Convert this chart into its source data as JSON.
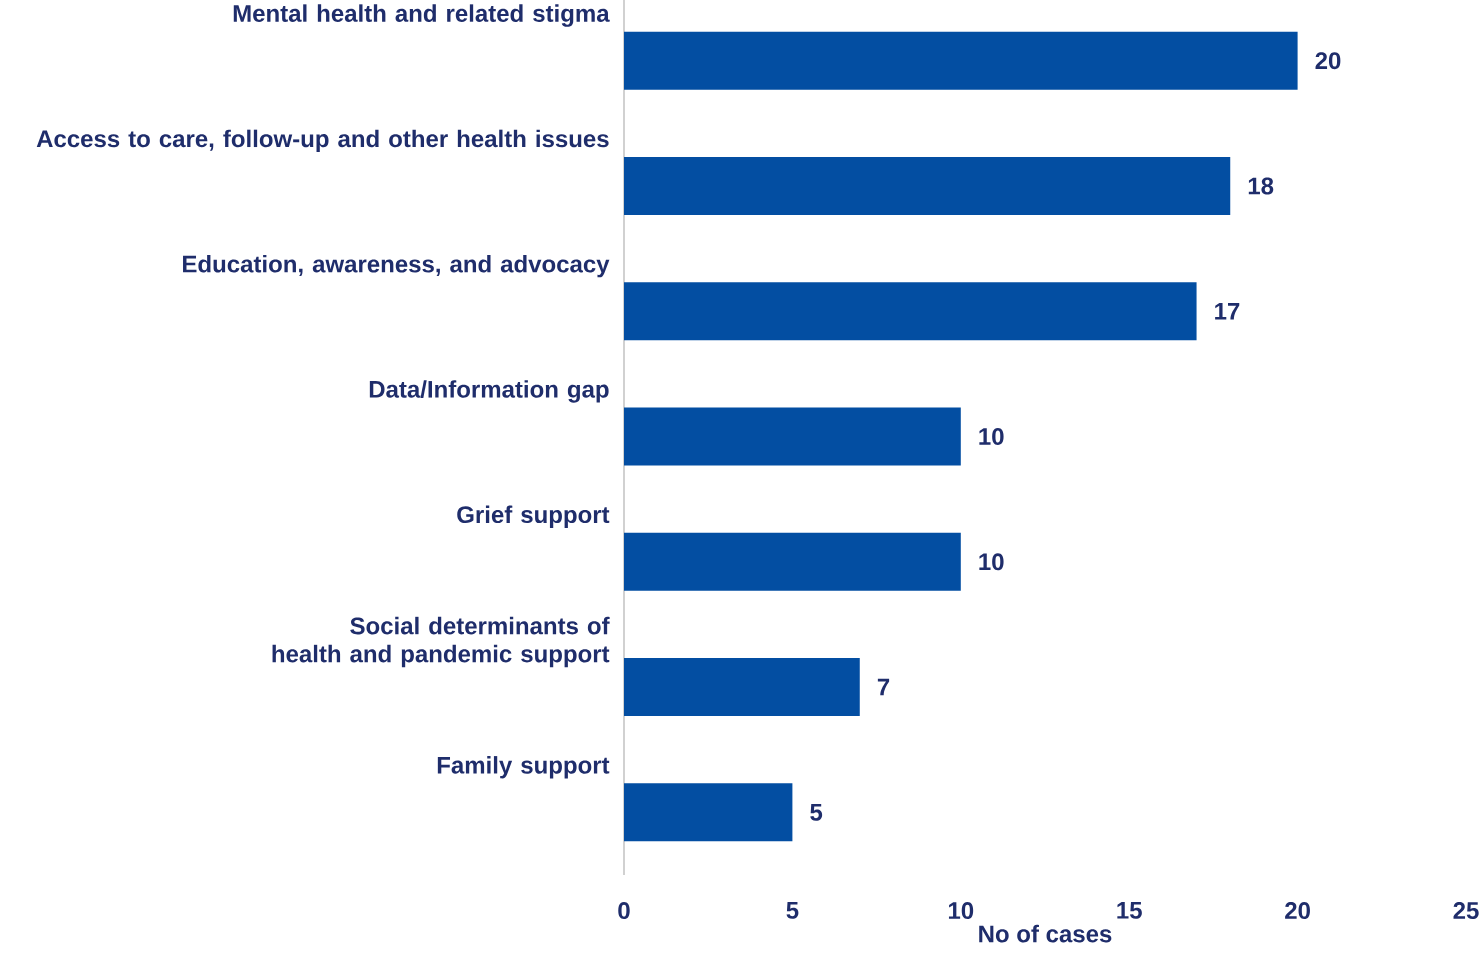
{
  "chart_data": {
    "type": "bar",
    "orientation": "horizontal",
    "xlabel": "No of cases",
    "categories": [
      "Mental health and related stigma",
      "Access to care, follow-up and other health issues",
      "Education, awareness, and advocacy",
      "Data/Information gap",
      "Grief support",
      "Social determinants of health and pandemic support",
      "Family support"
    ],
    "values": [
      20,
      18,
      17,
      10,
      10,
      7,
      5
    ],
    "color": "#034ea2",
    "data_labels": true,
    "grid": false,
    "xlim": [
      0,
      25
    ],
    "xticks": [
      0,
      5,
      10,
      15,
      20,
      25
    ]
  }
}
